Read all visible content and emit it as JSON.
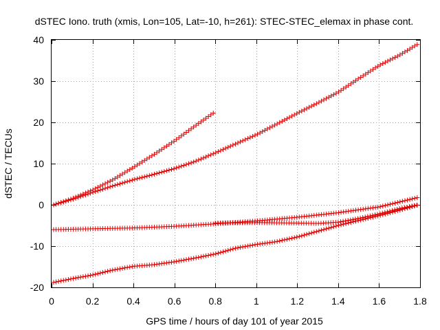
{
  "chart_data": {
    "type": "scatter",
    "title": "dSTEC Iono. truth (xmis, Lon=105, Lat=-10, h=261): STEC-STEC_elemax in phase cont.",
    "xlabel": "GPS time / hours of day 101 of year 2015",
    "ylabel": "dSTEC  / TECUs",
    "xlim": [
      0,
      1.8
    ],
    "ylim": [
      -20,
      40
    ],
    "xticks": [
      0,
      0.2,
      0.4,
      0.6,
      0.8,
      1,
      1.2,
      1.4,
      1.6,
      1.8
    ],
    "xtick_labels": [
      "0",
      "0.2",
      "0.4",
      "0.6",
      "0.8",
      "1",
      "1.2",
      "1.4",
      "1.6",
      "1.8"
    ],
    "yticks": [
      -20,
      -10,
      0,
      10,
      20,
      30,
      40
    ],
    "ytick_labels": [
      "-20",
      "-10",
      "0",
      "10",
      "20",
      "30",
      "40"
    ],
    "grid": true,
    "marker": "+",
    "marker_color": "#e00000",
    "series": [
      {
        "points": [
          [
            0.01,
            0
          ],
          [
            0.1,
            1.5
          ],
          [
            0.2,
            3.6
          ],
          [
            0.3,
            6.1
          ],
          [
            0.4,
            9.1
          ],
          [
            0.5,
            12.2
          ],
          [
            0.6,
            15.5
          ],
          [
            0.7,
            19.1
          ],
          [
            0.8,
            22.6
          ]
        ]
      },
      {
        "points": [
          [
            0.01,
            0
          ],
          [
            0.1,
            1.3
          ],
          [
            0.2,
            3
          ],
          [
            0.3,
            4.6
          ],
          [
            0.4,
            6.1
          ],
          [
            0.5,
            7.4
          ],
          [
            0.6,
            8.8
          ],
          [
            0.7,
            10.5
          ],
          [
            0.8,
            12.6
          ],
          [
            0.9,
            14.8
          ],
          [
            1.0,
            17
          ],
          [
            1.1,
            19.6
          ],
          [
            1.2,
            22.2
          ],
          [
            1.3,
            24.7
          ],
          [
            1.4,
            27.3
          ],
          [
            1.5,
            30.6
          ],
          [
            1.6,
            33.8
          ],
          [
            1.7,
            36.3
          ],
          [
            1.79,
            39
          ]
        ]
      },
      {
        "points": [
          [
            0.01,
            -6
          ],
          [
            0.2,
            -5.8
          ],
          [
            0.4,
            -5.6
          ],
          [
            0.6,
            -5.2
          ],
          [
            0.8,
            -4.6
          ],
          [
            1.0,
            -3.9
          ],
          [
            1.2,
            -3
          ],
          [
            1.4,
            -1.9
          ],
          [
            1.6,
            -0.5
          ],
          [
            1.79,
            1.8
          ]
        ]
      },
      {
        "points": [
          [
            0.8,
            -4.4
          ],
          [
            1.0,
            -4.3
          ],
          [
            1.2,
            -4.4
          ],
          [
            1.3,
            -4.5
          ],
          [
            1.4,
            -4.2
          ],
          [
            1.5,
            -3.3
          ],
          [
            1.6,
            -2.2
          ],
          [
            1.7,
            -0.9
          ],
          [
            1.79,
            0
          ]
        ]
      },
      {
        "points": [
          [
            0.01,
            -18.8
          ],
          [
            0.1,
            -17.9
          ],
          [
            0.2,
            -17
          ],
          [
            0.3,
            -15.8
          ],
          [
            0.4,
            -14.9
          ],
          [
            0.5,
            -14.5
          ],
          [
            0.6,
            -13.8
          ],
          [
            0.7,
            -12.9
          ],
          [
            0.8,
            -11.9
          ],
          [
            0.9,
            -10.5
          ],
          [
            1.0,
            -9.6
          ],
          [
            1.1,
            -8.9
          ],
          [
            1.2,
            -7.8
          ],
          [
            1.3,
            -6.4
          ],
          [
            1.4,
            -5
          ],
          [
            1.5,
            -3.8
          ],
          [
            1.6,
            -2.6
          ],
          [
            1.7,
            -1.3
          ],
          [
            1.79,
            0
          ]
        ]
      }
    ]
  }
}
